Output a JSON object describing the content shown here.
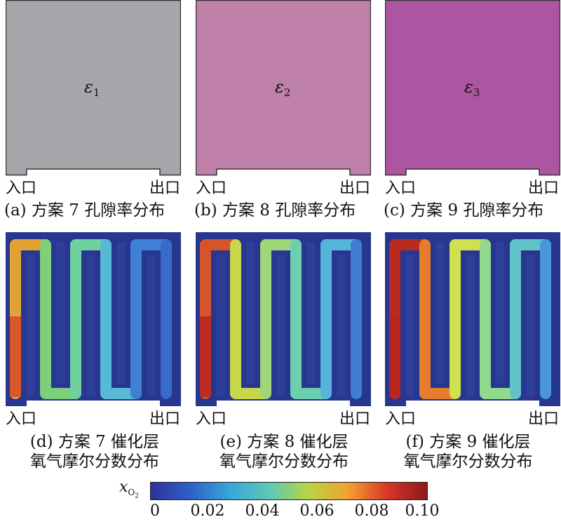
{
  "porosity_panels": [
    {
      "symbol": "ε",
      "subscript": "1",
      "color": "#a9a6ab",
      "inlet": "入口",
      "outlet": "出口",
      "caption": "(a) 方案 7 孔隙率分布"
    },
    {
      "symbol": "ε",
      "subscript": "2",
      "color": "#bf80aa",
      "inlet": "入口",
      "outlet": "出口",
      "caption": "(b) 方案 8 孔隙率分布"
    },
    {
      "symbol": "ε",
      "subscript": "3",
      "color": "#ad55a0",
      "inlet": "入口",
      "outlet": "出口",
      "caption": "(c) 方案 9 孔隙率分布"
    }
  ],
  "oxygen_panels": [
    {
      "inlet": "入口",
      "outlet": "出口",
      "caption_line1": "(d) 方案 7 催化层",
      "caption_line2": "氧气摩尔分数分布"
    },
    {
      "inlet": "入口",
      "outlet": "出口",
      "caption_line1": "(e) 方案 8 催化层",
      "caption_line2": "氧气摩尔分数分布"
    },
    {
      "inlet": "入口",
      "outlet": "出口",
      "caption_line1": "(f) 方案 9 催化层",
      "caption_line2": "氧气摩尔分数分布"
    }
  ],
  "colorbar": {
    "symbol": "x",
    "subscript": "O",
    "subsubscript": "2",
    "ticks": [
      "0",
      "0.02",
      "0.04",
      "0.06",
      "0.08",
      "0.10"
    ],
    "colors": [
      "#30309a",
      "#2f5fc8",
      "#36a6d9",
      "#5dc8b6",
      "#b9d445",
      "#f0a22e",
      "#d8352a",
      "#8a1a1a"
    ]
  }
}
